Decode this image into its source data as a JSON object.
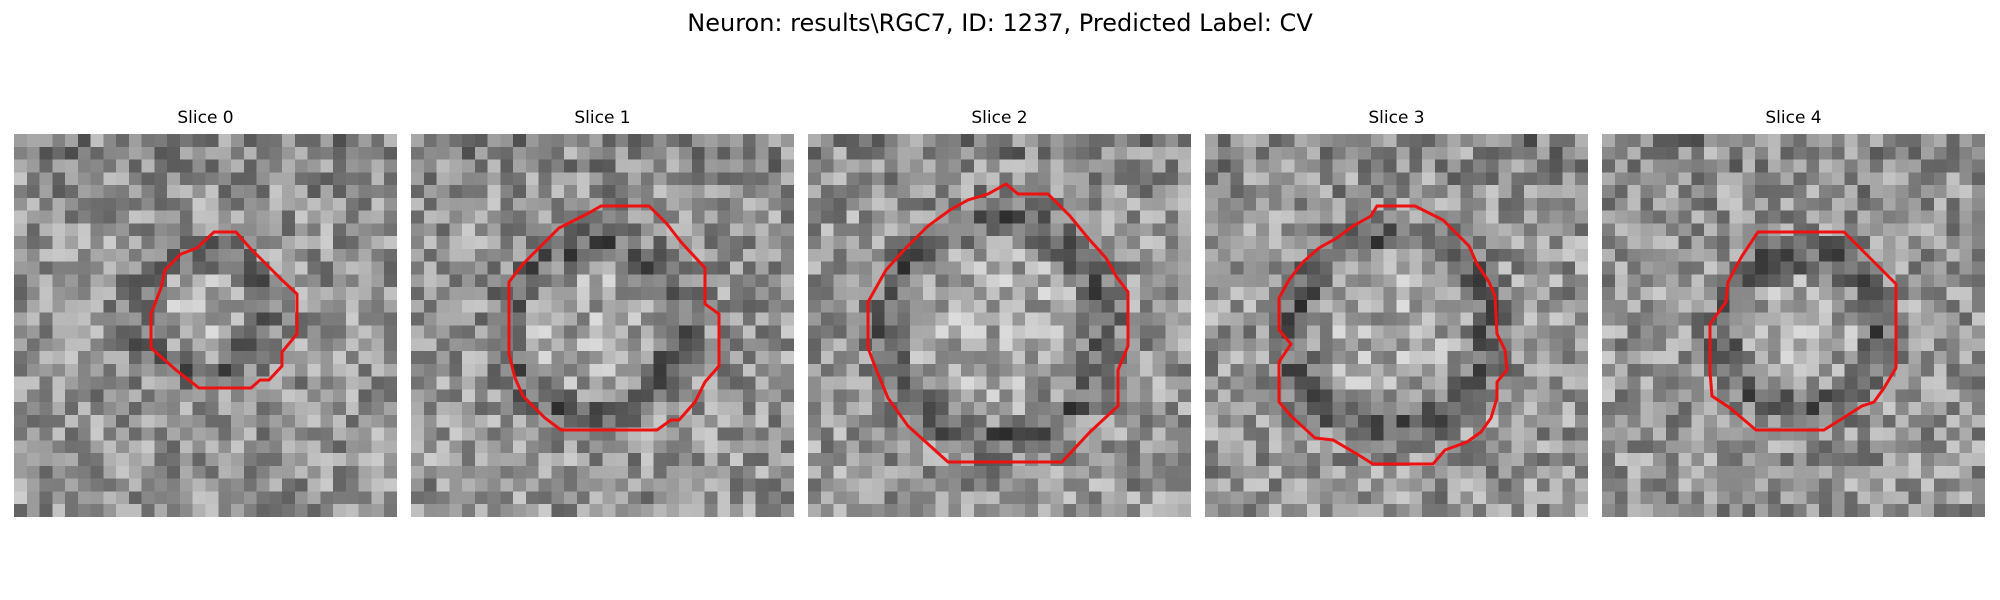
{
  "figure": {
    "title": "Neuron: results\\RGC7, ID: 1237, Predicted Label: CV"
  },
  "panels": [
    {
      "title": "Slice 0",
      "image": "grayscale-microscopy-patch-with-cell-body",
      "contour_color": "#ee1111"
    },
    {
      "title": "Slice 1",
      "image": "grayscale-microscopy-patch-with-cell-body",
      "contour_color": "#ee1111"
    },
    {
      "title": "Slice 2",
      "image": "grayscale-microscopy-patch-with-cell-body",
      "contour_color": "#ee1111"
    },
    {
      "title": "Slice 3",
      "image": "grayscale-microscopy-patch-with-cell-body",
      "contour_color": "#ee1111"
    },
    {
      "title": "Slice 4",
      "image": "grayscale-microscopy-patch-with-cell-body",
      "contour_color": "#ee1111"
    }
  ]
}
